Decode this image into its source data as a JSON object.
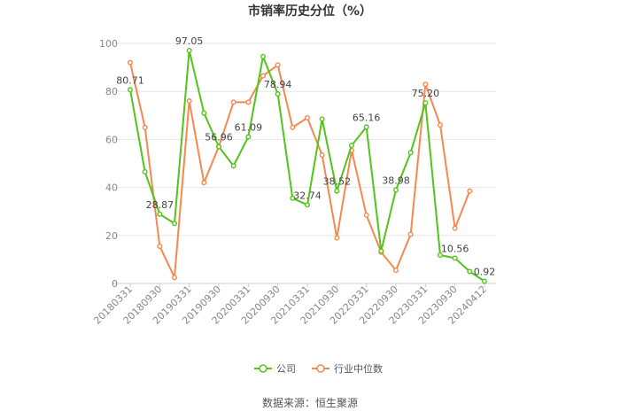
{
  "chart_data": {
    "type": "line",
    "title": "市销率历史分位（%）",
    "ylim": [
      0,
      100
    ],
    "yticks": [
      0,
      20,
      40,
      60,
      80,
      100
    ],
    "grid": "horizontal",
    "legend_position": "bottom-center",
    "x_tick_labels": [
      "20180331",
      "20180930",
      "20190331",
      "20190930",
      "20200331",
      "20200930",
      "20210331",
      "20210930",
      "20220331",
      "20220930",
      "20230331",
      "20230930",
      "20240412"
    ],
    "x_tick_index": [
      0,
      2,
      4,
      6,
      8,
      10,
      12,
      14,
      16,
      18,
      20,
      22,
      24
    ],
    "series": [
      {
        "name": "公司",
        "color": "#52c41a",
        "values": [
          80.71,
          46.5,
          28.87,
          25.0,
          97.05,
          71.0,
          56.96,
          49.0,
          61.09,
          94.5,
          78.94,
          35.5,
          32.74,
          68.5,
          38.52,
          57.5,
          65.16,
          13.5,
          38.98,
          54.5,
          75.2,
          11.8,
          10.56,
          5.0,
          0.92
        ],
        "labeled": {
          "0": "80.71",
          "2": "28.87",
          "4": "97.05",
          "6": "56.96",
          "8": "61.09",
          "10": "78.94",
          "12": "32.74",
          "14": "38.52",
          "16": "65.16",
          "18": "38.98",
          "20": "75.20",
          "22": "10.56",
          "24": "0.92"
        }
      },
      {
        "name": "行业中位数",
        "color": "#f5884f",
        "values": [
          92.0,
          65.0,
          15.5,
          2.5,
          76.0,
          42.0,
          57.0,
          75.5,
          75.5,
          86.5,
          91.0,
          65.0,
          69.0,
          53.5,
          19.0,
          55.5,
          28.5,
          13.0,
          5.5,
          20.5,
          83.0,
          66.0,
          23.0,
          38.5,
          null
        ]
      }
    ]
  },
  "source": "数据来源：恒生聚源"
}
